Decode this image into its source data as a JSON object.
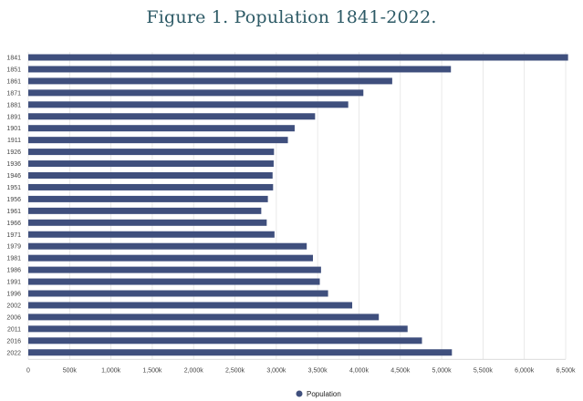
{
  "title": "Figure 1. Population 1841-2022.",
  "chart_data": {
    "type": "bar",
    "orientation": "horizontal",
    "categories": [
      "1841",
      "1851",
      "1861",
      "1871",
      "1881",
      "1891",
      "1901",
      "1911",
      "1926",
      "1936",
      "1946",
      "1951",
      "1956",
      "1961",
      "1966",
      "1971",
      "1979",
      "1981",
      "1986",
      "1991",
      "1996",
      "2002",
      "2006",
      "2011",
      "2016",
      "2022"
    ],
    "series": [
      {
        "name": "Population",
        "values": [
          6529000,
          5112000,
          4402000,
          4053000,
          3870000,
          3469000,
          3222000,
          3140000,
          2972000,
          2968000,
          2955000,
          2961000,
          2898000,
          2818000,
          2884000,
          2978000,
          3368000,
          3443000,
          3541000,
          3526000,
          3626000,
          3918000,
          4240000,
          4588000,
          4762000,
          5124000
        ]
      }
    ],
    "xlim": [
      0,
      6500000
    ],
    "xticks": [
      0,
      500000,
      1000000,
      1500000,
      2000000,
      2500000,
      3000000,
      3500000,
      4000000,
      4500000,
      5000000,
      5500000,
      6000000,
      6500000
    ],
    "xtick_labels": [
      "0",
      "500k",
      "1,000k",
      "1,500k",
      "2,000k",
      "2,500k",
      "3,000k",
      "3,500k",
      "4,000k",
      "4,500k",
      "5,000k",
      "5,500k",
      "6,000k",
      "6,500k"
    ],
    "color": "#3f4f7d",
    "grid": true,
    "legend": "bottom-center"
  }
}
